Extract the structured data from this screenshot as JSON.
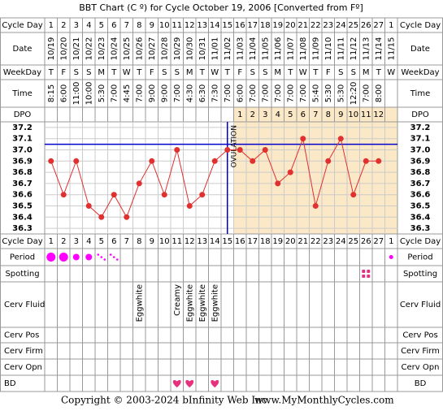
{
  "title": "BBT Chart (C º) for Cycle October 19, 2006  [Converted from Fº]",
  "labels": {
    "cycle_day": "Cycle Day",
    "date": "Date",
    "weekday": "WeekDay",
    "time": "Time",
    "dpo": "DPO",
    "period": "Period",
    "spotting": "Spotting",
    "cerv_fluid": "Cerv Fluid",
    "cerv_pos": "Cerv Pos",
    "cerv_firm": "Cerv Firm",
    "cerv_opn": "Cerv Opn",
    "bd": "BD"
  },
  "cycle_days": [
    1,
    2,
    3,
    4,
    5,
    6,
    7,
    8,
    9,
    10,
    11,
    12,
    13,
    14,
    15,
    16,
    17,
    18,
    19,
    20,
    21,
    22,
    23,
    24,
    25,
    26,
    27,
    1
  ],
  "dates": [
    "10/19",
    "10/20",
    "10/21",
    "10/22",
    "10/23",
    "10/24",
    "10/25",
    "10/26",
    "10/27",
    "10/28",
    "10/29",
    "10/30",
    "10/31",
    "11/01",
    "11/02",
    "11/03",
    "11/04",
    "11/05",
    "11/06",
    "11/07",
    "11/08",
    "11/09",
    "11/10",
    "11/11",
    "11/12",
    "11/13",
    "11/14",
    "11/15"
  ],
  "weekdays": [
    "T",
    "F",
    "S",
    "S",
    "M",
    "T",
    "W",
    "T",
    "F",
    "S",
    "S",
    "M",
    "T",
    "W",
    "T",
    "F",
    "S",
    "S",
    "M",
    "T",
    "W",
    "T",
    "F",
    "S",
    "S",
    "M",
    "T",
    "W"
  ],
  "times": [
    "8:15",
    "6:00",
    "11:00",
    "10:00",
    "5:30",
    "7:00",
    "4:45",
    "7:00",
    "9:00",
    "9:00",
    "7:00",
    "4:30",
    "6:30",
    "7:30",
    "7:00",
    "6:00",
    "7:00",
    "7:00",
    "7:00",
    "7:00",
    "7:00",
    "5:40",
    "5:30",
    "5:30",
    "12:20",
    "7:00",
    "8:00",
    null
  ],
  "dpo": [
    null,
    null,
    null,
    null,
    null,
    null,
    null,
    null,
    null,
    null,
    null,
    null,
    null,
    null,
    null,
    1,
    2,
    3,
    4,
    5,
    6,
    7,
    8,
    9,
    10,
    11,
    12,
    null
  ],
  "chart": {
    "type": "line",
    "color": "#e03030",
    "ovulation_label": "OVULATION",
    "ovulation_day": 15,
    "coverline": 37.05,
    "temps": [
      36.9,
      36.6,
      36.9,
      36.5,
      36.4,
      36.6,
      36.4,
      36.7,
      36.9,
      36.6,
      37.0,
      36.5,
      36.6,
      36.9,
      37.0,
      37.0,
      36.9,
      37.0,
      36.7,
      36.8,
      37.1,
      36.5,
      36.9,
      37.1,
      36.6,
      36.9,
      36.9,
      null
    ],
    "ylim": [
      36.25,
      37.25
    ],
    "yticks": [
      {
        "value": 37.2,
        "label": "37.2"
      },
      {
        "value": 37.1,
        "label": "37.1"
      },
      {
        "value": 37,
        "label": "37.0"
      },
      {
        "value": 36.9,
        "label": "36.9"
      },
      {
        "value": 36.8,
        "label": "36.8"
      },
      {
        "value": 36.7,
        "label": "36.7"
      },
      {
        "value": 36.6,
        "label": "36.6"
      },
      {
        "value": 36.5,
        "label": "36.5"
      },
      {
        "value": 36.4,
        "label": "36.4"
      },
      {
        "value": 36.3,
        "label": "36.3"
      }
    ]
  },
  "period": [
    "heavy",
    "heavy",
    "medium",
    "medium",
    "spotting",
    "spotting",
    null,
    null,
    null,
    null,
    null,
    null,
    null,
    null,
    null,
    null,
    null,
    null,
    null,
    null,
    null,
    null,
    null,
    null,
    null,
    null,
    null,
    "light"
  ],
  "spotting": [
    false,
    false,
    false,
    false,
    false,
    false,
    false,
    false,
    false,
    false,
    false,
    false,
    false,
    false,
    false,
    false,
    false,
    false,
    false,
    false,
    false,
    false,
    false,
    false,
    false,
    true,
    false,
    false
  ],
  "cerv_fluid": [
    null,
    null,
    null,
    null,
    null,
    null,
    null,
    "Eggwhite",
    null,
    null,
    "Creamy",
    "Eggwhite",
    "Eggwhite",
    "Eggwhite",
    null,
    null,
    null,
    null,
    null,
    null,
    null,
    null,
    null,
    null,
    null,
    null,
    null,
    null
  ],
  "bd": [
    false,
    false,
    false,
    false,
    false,
    false,
    false,
    false,
    false,
    false,
    true,
    true,
    false,
    true,
    false,
    false,
    false,
    false,
    false,
    false,
    false,
    false,
    false,
    false,
    false,
    false,
    false,
    false
  ],
  "footer": {
    "copyright": "Copyright © 2003-2024 bInfinity Web Inc.",
    "url": "www.MyMonthlyCycles.com"
  }
}
